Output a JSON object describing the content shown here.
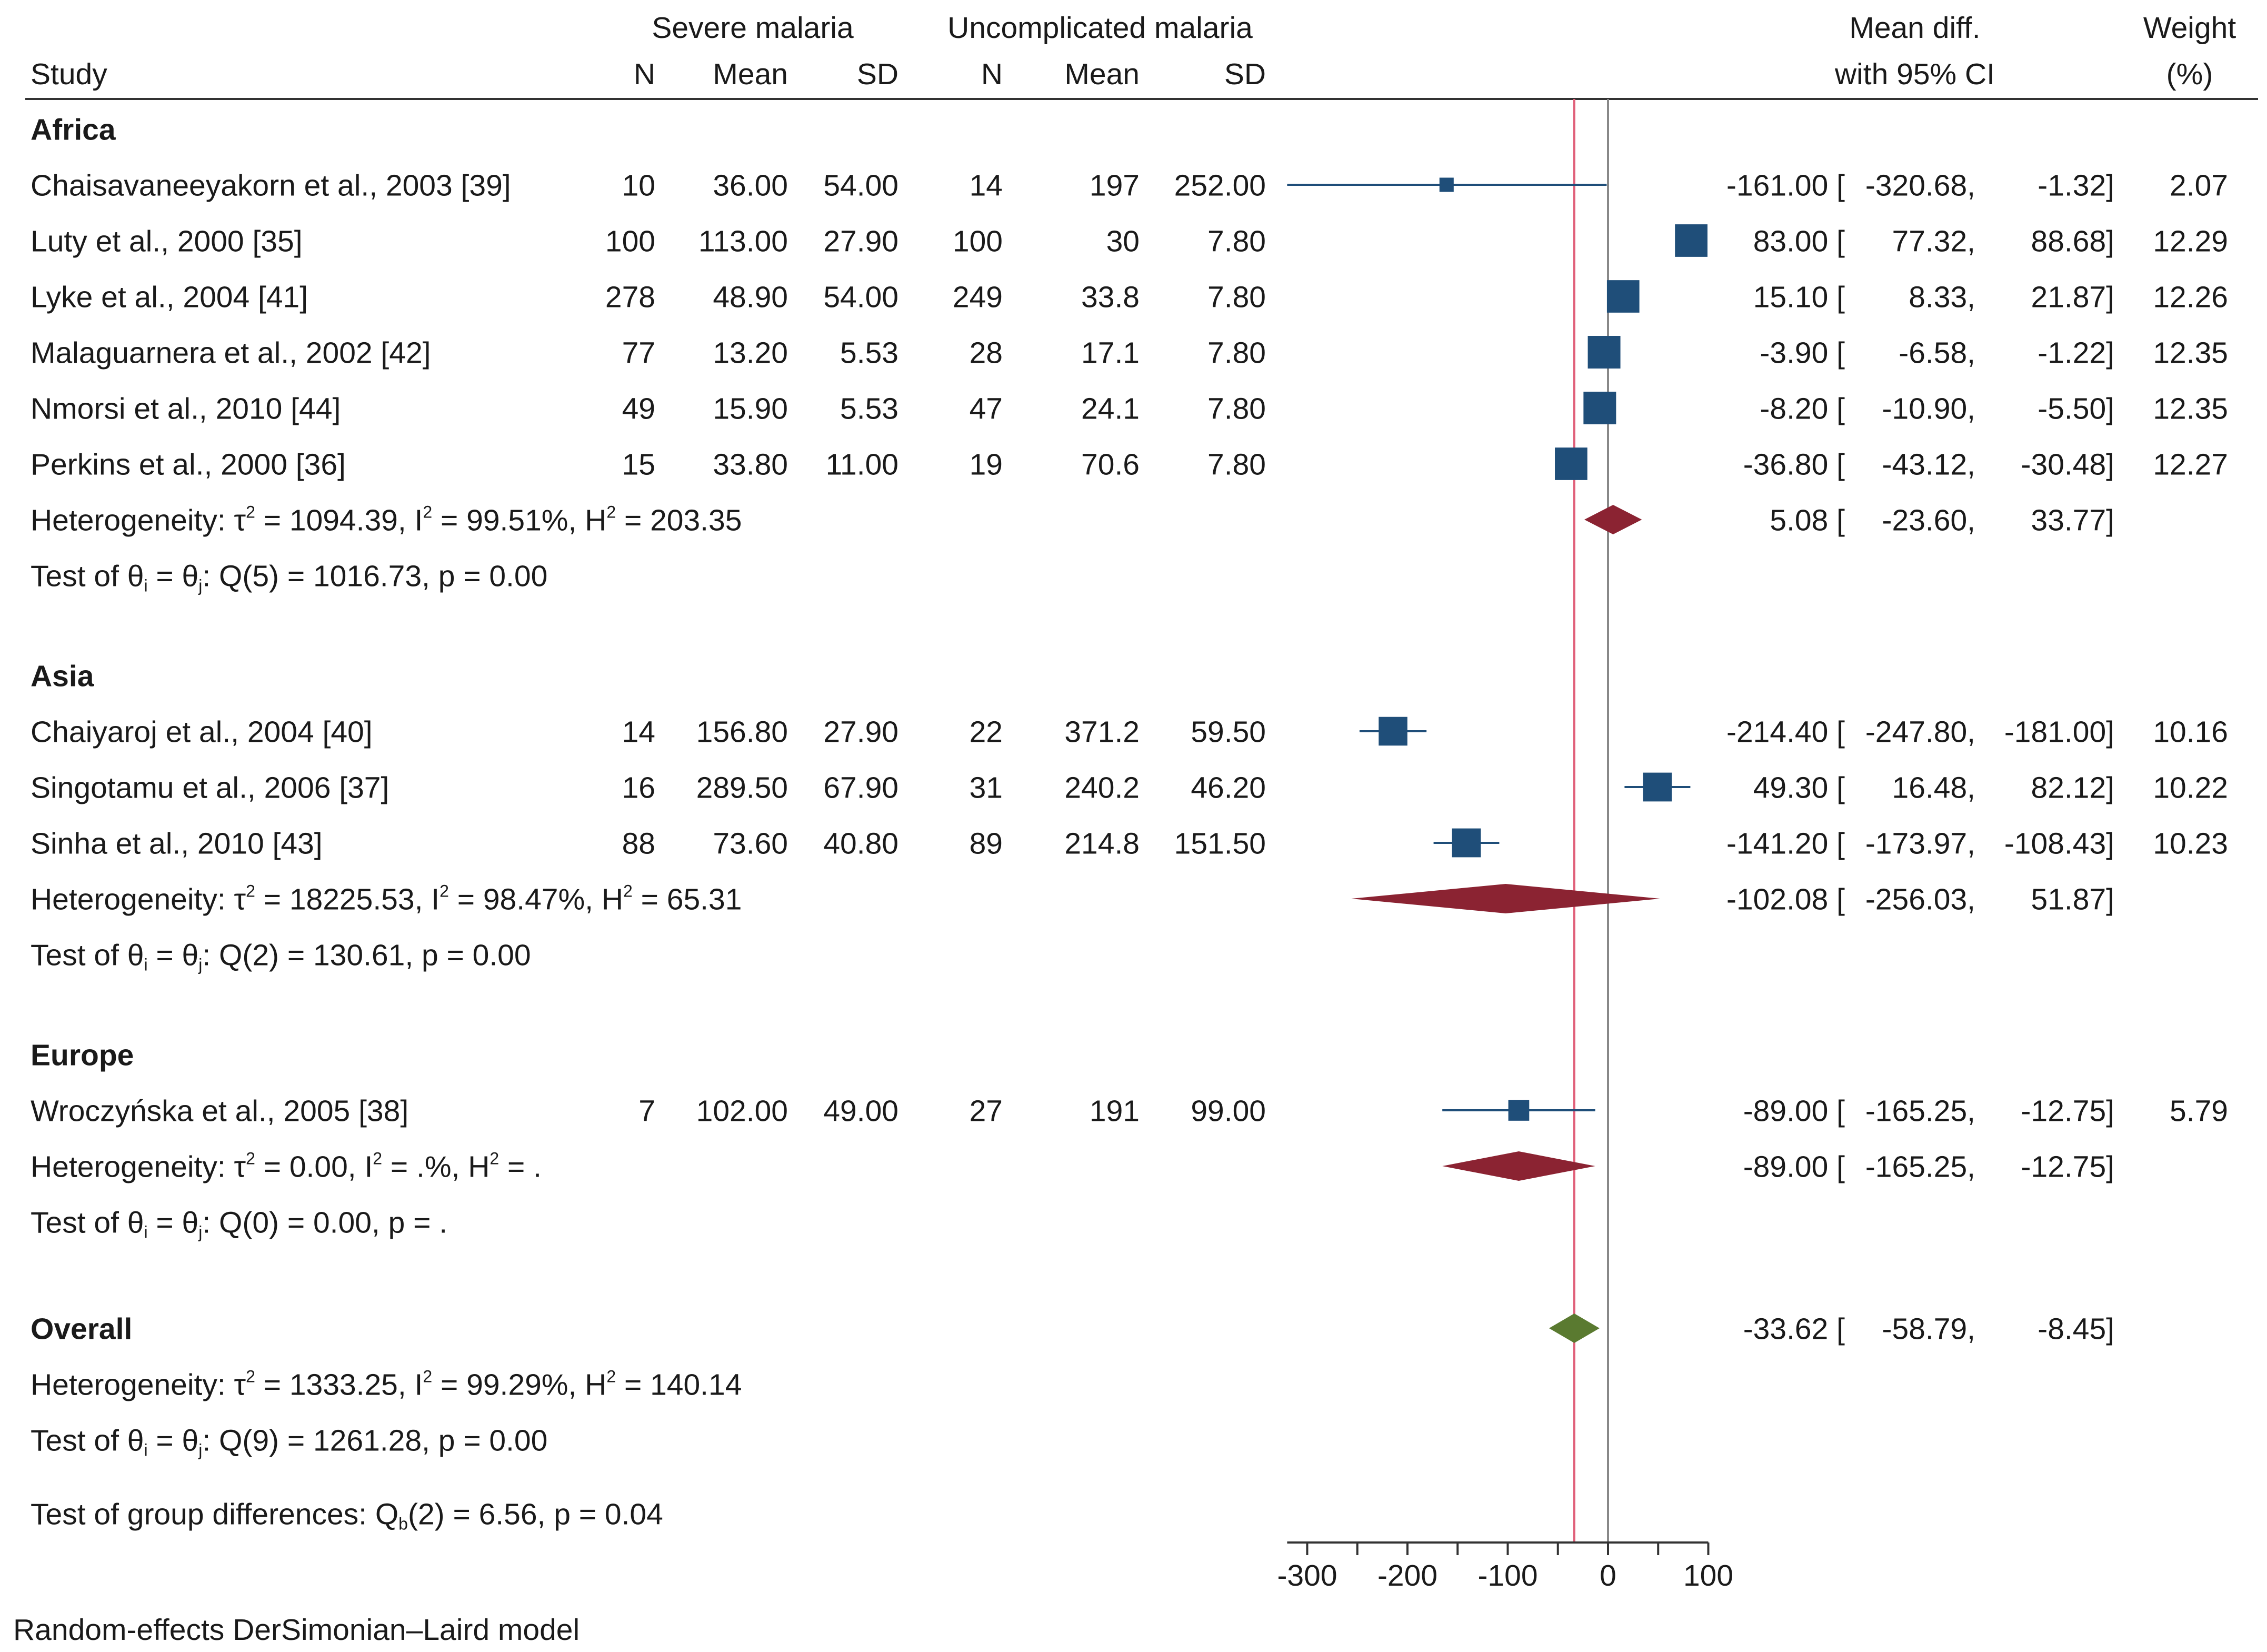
{
  "chart_data": {
    "type": "forest",
    "columns": {
      "study": "Study",
      "severe_group": "Severe malaria",
      "uncomplicated_group": "Uncomplicated malaria",
      "n": "N",
      "mean": "Mean",
      "sd": "SD",
      "effect_line1": "Mean diff.",
      "effect_line2": "with 95% CI",
      "weight_line1": "Weight",
      "weight_line2": "(%)"
    },
    "groups": [
      {
        "name": "Africa",
        "studies": [
          {
            "label": "Chaisavaneeyakorn et al., 2003 [39]",
            "sev_n": "10",
            "sev_mean": "36.00",
            "sev_sd": "54.00",
            "unc_n": "14",
            "unc_mean": "197",
            "unc_sd": "252.00",
            "md": -161.0,
            "lo": -320.68,
            "hi": -1.32,
            "md_text": "-161.00 [",
            "lo_text": "-320.68,",
            "hi_text": "-1.32]",
            "weight": 2.07,
            "weight_text": "2.07"
          },
          {
            "label": "Luty et al., 2000  [35]",
            "sev_n": "100",
            "sev_mean": "113.00",
            "sev_sd": "27.90",
            "unc_n": "100",
            "unc_mean": "30",
            "unc_sd": "7.80",
            "md": 83.0,
            "lo": 77.32,
            "hi": 88.68,
            "md_text": "83.00 [",
            "lo_text": "77.32,",
            "hi_text": "88.68]",
            "weight": 12.29,
            "weight_text": "12.29"
          },
          {
            "label": "Lyke et al., 2004 [41]",
            "sev_n": "278",
            "sev_mean": "48.90",
            "sev_sd": "54.00",
            "unc_n": "249",
            "unc_mean": "33.8",
            "unc_sd": "7.80",
            "md": 15.1,
            "lo": 8.33,
            "hi": 21.87,
            "md_text": "15.10 [",
            "lo_text": "8.33,",
            "hi_text": "21.87]",
            "weight": 12.26,
            "weight_text": "12.26"
          },
          {
            "label": "Malaguarnera et al., 2002 [42]",
            "sev_n": "77",
            "sev_mean": "13.20",
            "sev_sd": "5.53",
            "unc_n": "28",
            "unc_mean": "17.1",
            "unc_sd": "7.80",
            "md": -3.9,
            "lo": -6.58,
            "hi": -1.22,
            "md_text": "-3.90 [",
            "lo_text": "-6.58,",
            "hi_text": "-1.22]",
            "weight": 12.35,
            "weight_text": "12.35"
          },
          {
            "label": "Nmorsi et al., 2010 [44]",
            "sev_n": "49",
            "sev_mean": "15.90",
            "sev_sd": "5.53",
            "unc_n": "47",
            "unc_mean": "24.1",
            "unc_sd": "7.80",
            "md": -8.2,
            "lo": -10.9,
            "hi": -5.5,
            "md_text": "-8.20 [",
            "lo_text": "-10.90,",
            "hi_text": "-5.50]",
            "weight": 12.35,
            "weight_text": "12.35"
          },
          {
            "label": "Perkins et al., 2000 [36]",
            "sev_n": "15",
            "sev_mean": "33.80",
            "sev_sd": "11.00",
            "unc_n": "19",
            "unc_mean": "70.6",
            "unc_sd": "7.80",
            "md": -36.8,
            "lo": -43.12,
            "hi": -30.48,
            "md_text": "-36.80 [",
            "lo_text": "-43.12,",
            "hi_text": "-30.48]",
            "weight": 12.27,
            "weight_text": "12.27"
          }
        ],
        "summary": {
          "md": 5.08,
          "lo": -23.6,
          "hi": 33.77,
          "md_text": "5.08 [",
          "lo_text": "-23.60,",
          "hi_text": "33.77]"
        },
        "heterogeneity": {
          "tau": "1094.39",
          "i2": "99.51%",
          "h2": "203.35"
        },
        "test": {
          "df": "5",
          "q": "1016.73",
          "p": "0.00"
        }
      },
      {
        "name": "Asia",
        "studies": [
          {
            "label": "Chaiyaroj et al., 2004 [40]",
            "sev_n": "14",
            "sev_mean": "156.80",
            "sev_sd": "27.90",
            "unc_n": "22",
            "unc_mean": "371.2",
            "unc_sd": "59.50",
            "md": -214.4,
            "lo": -247.8,
            "hi": -181.0,
            "md_text": "-214.40 [",
            "lo_text": "-247.80,",
            "hi_text": "-181.00]",
            "weight": 10.16,
            "weight_text": "10.16"
          },
          {
            "label": "Singotamu et al., 2006 [37]",
            "sev_n": "16",
            "sev_mean": "289.50",
            "sev_sd": "67.90",
            "unc_n": "31",
            "unc_mean": "240.2",
            "unc_sd": "46.20",
            "md": 49.3,
            "lo": 16.48,
            "hi": 82.12,
            "md_text": "49.30 [",
            "lo_text": "16.48,",
            "hi_text": "82.12]",
            "weight": 10.22,
            "weight_text": "10.22"
          },
          {
            "label": "Sinha et al., 2010 [43]",
            "sev_n": "88",
            "sev_mean": "73.60",
            "sev_sd": "40.80",
            "unc_n": "89",
            "unc_mean": "214.8",
            "unc_sd": "151.50",
            "md": -141.2,
            "lo": -173.97,
            "hi": -108.43,
            "md_text": "-141.20 [",
            "lo_text": "-173.97,",
            "hi_text": "-108.43]",
            "weight": 10.23,
            "weight_text": "10.23"
          }
        ],
        "summary": {
          "md": -102.08,
          "lo": -256.03,
          "hi": 51.87,
          "md_text": "-102.08 [",
          "lo_text": "-256.03,",
          "hi_text": "51.87]"
        },
        "heterogeneity": {
          "tau": "18225.53",
          "i2": "98.47%",
          "h2": "65.31"
        },
        "test": {
          "df": "2",
          "q": "130.61",
          "p": "0.00"
        }
      },
      {
        "name": "Europe",
        "studies": [
          {
            "label": "Wroczyńska et al., 2005 [38]",
            "sev_n": "7",
            "sev_mean": "102.00",
            "sev_sd": "49.00",
            "unc_n": "27",
            "unc_mean": "191",
            "unc_sd": "99.00",
            "md": -89.0,
            "lo": -165.25,
            "hi": -12.75,
            "md_text": "-89.00 [",
            "lo_text": "-165.25,",
            "hi_text": "-12.75]",
            "weight": 5.79,
            "weight_text": "5.79"
          }
        ],
        "summary": {
          "md": -89.0,
          "lo": -165.25,
          "hi": -12.75,
          "md_text": "-89.00 [",
          "lo_text": "-165.25,",
          "hi_text": "-12.75]"
        },
        "heterogeneity": {
          "tau": "0.00",
          "i2": ".%",
          "h2": "."
        },
        "test": {
          "df": "0",
          "q": "0.00",
          "p": "."
        }
      }
    ],
    "overall": {
      "label": "Overall",
      "md": -33.62,
      "lo": -58.79,
      "hi": -8.45,
      "md_text": "-33.62 [",
      "lo_text": "-58.79,",
      "hi_text": "-8.45]",
      "heterogeneity": {
        "tau": "1333.25",
        "i2": "99.29%",
        "h2": "140.14"
      },
      "test": {
        "df": "9",
        "q": "1261.28",
        "p": "0.00"
      }
    },
    "group_difference": {
      "df": "2",
      "q": "6.56",
      "p": "0.04"
    },
    "x_axis": {
      "ticks": [
        -300,
        -200,
        -100,
        0,
        100
      ],
      "min": -320,
      "max": 100
    },
    "reference_lines": {
      "null": 0,
      "overall": -33.62
    },
    "footnote": "Random-effects DerSimonian–Laird model",
    "colors": {
      "study_marker": "#1f4e79",
      "group_diamond": "#8b2332",
      "overall_diamond": "#5a7a30",
      "overall_line": "#e0607a",
      "null_line": "#888888"
    }
  }
}
